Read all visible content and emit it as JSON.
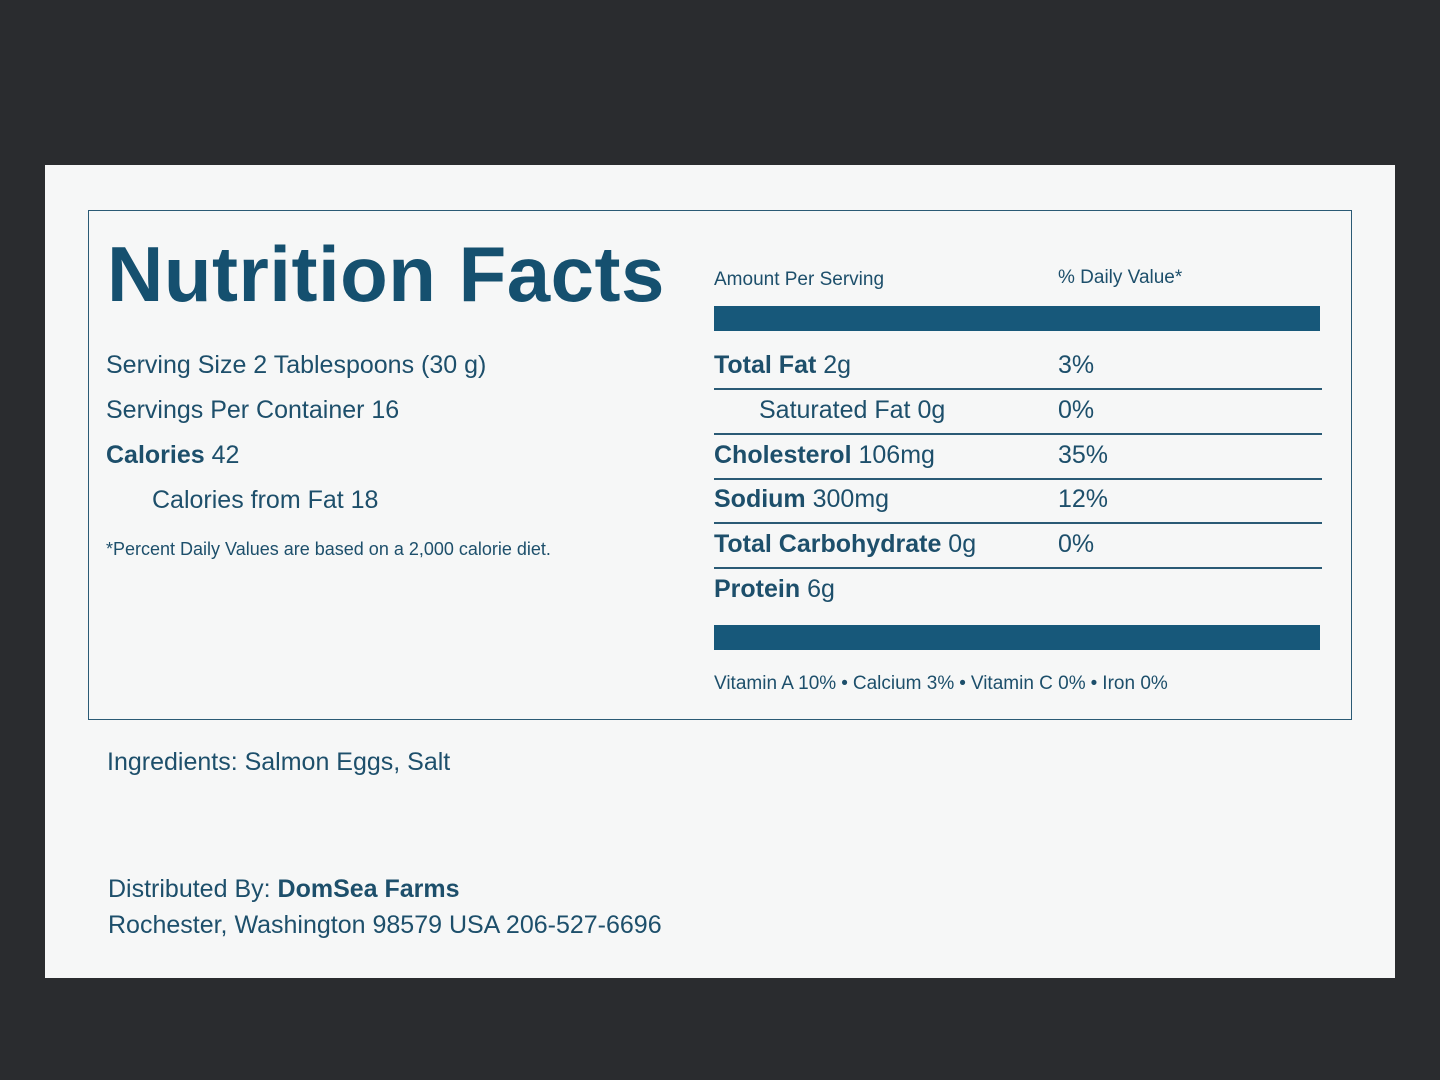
{
  "label": {
    "title": "Nutrition Facts",
    "serving_size": "Serving Size 2 Tablespoons (30 g)",
    "servings_per_container": "Servings Per Container 16",
    "calories": {
      "label": "Calories",
      "value": "42"
    },
    "calories_from_fat": "Calories from Fat 18",
    "footnote": "*Percent Daily Values are based on a 2,000 calorie diet.",
    "amount_header": "Amount Per Serving",
    "daily_value_header": "% Daily Value*",
    "nutrients": [
      {
        "name": "Total Fat",
        "amount": "2g",
        "daily_value": "3%",
        "bold": true
      },
      {
        "name": "Saturated Fat",
        "amount": "0g",
        "daily_value": "0%",
        "bold": false,
        "indent": true
      },
      {
        "name": "Cholesterol",
        "amount": "106mg",
        "daily_value": "35%",
        "bold": true
      },
      {
        "name": "Sodium",
        "amount": "300mg",
        "daily_value": "12%",
        "bold": true
      },
      {
        "name": "Total Carbohydrate",
        "amount": "0g",
        "daily_value": "0%",
        "bold": true
      },
      {
        "name": "Protein",
        "amount": "6g",
        "bold": true
      }
    ],
    "vitamins": [
      "Vitamin A 10%",
      "Calcium 3%",
      "Vitamin C 0%",
      "Iron 0%"
    ]
  },
  "ingredients": "Ingredients: Salmon Eggs, Salt",
  "distributor": {
    "label": "Distributed By:",
    "name": "DomSea Farms",
    "address": "Rochester, Washington 98579 USA 206-527-6696"
  }
}
